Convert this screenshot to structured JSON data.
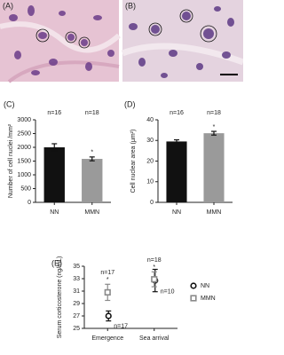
{
  "figure": {
    "images": [
      {
        "label": "(A)"
      },
      {
        "label": "(B)"
      }
    ]
  },
  "chart_data": [
    {
      "type": "bar",
      "panel_label": "(C)",
      "y_label": "Number of cell nuclei /mm²",
      "categories": [
        "NN",
        "MMN"
      ],
      "values": [
        2000,
        1580
      ],
      "errors": [
        130,
        70
      ],
      "colors": [
        "#111111",
        "#9a9a9a"
      ],
      "n_labels": [
        "n=16",
        "n=18"
      ],
      "sig_labels": [
        null,
        "*"
      ],
      "ylim": [
        0,
        3000
      ],
      "yticks": [
        0,
        500,
        1000,
        1500,
        2000,
        2500,
        3000
      ]
    },
    {
      "type": "bar",
      "panel_label": "(D)",
      "y_label": "Cell nuclear area (μm²)",
      "categories": [
        "NN",
        "MMN"
      ],
      "values": [
        29.5,
        33.5
      ],
      "errors": [
        0.8,
        0.9
      ],
      "colors": [
        "#111111",
        "#9a9a9a"
      ],
      "n_labels": [
        "n=16",
        "n=18"
      ],
      "sig_labels": [
        null,
        "*"
      ],
      "ylim": [
        0,
        40
      ],
      "yticks": [
        0,
        10,
        20,
        30,
        40
      ]
    },
    {
      "type": "errorbar",
      "panel_label": "(E)",
      "y_label": "Serum corticosterone (ng/mL)",
      "categories": [
        "Emergence",
        "Sea arrival"
      ],
      "series": [
        {
          "name": "NN",
          "color": "#111111",
          "marker": "circle",
          "values": [
            27,
            32.7
          ],
          "errors": [
            0.8,
            1.8
          ],
          "n_labels": [
            "n=17",
            "n=10"
          ],
          "sig_labels": [
            null,
            null
          ]
        },
        {
          "name": "MMN",
          "color": "#8a8a8a",
          "marker": "square",
          "values": [
            30.8,
            32.9
          ],
          "errors": [
            1.3,
            1.2
          ],
          "n_labels": [
            "n=17",
            "n=18"
          ],
          "sig_labels": [
            "*",
            "*"
          ]
        }
      ],
      "ylim": [
        25,
        35
      ],
      "yticks": [
        25,
        27,
        29,
        31,
        33,
        35
      ]
    }
  ]
}
